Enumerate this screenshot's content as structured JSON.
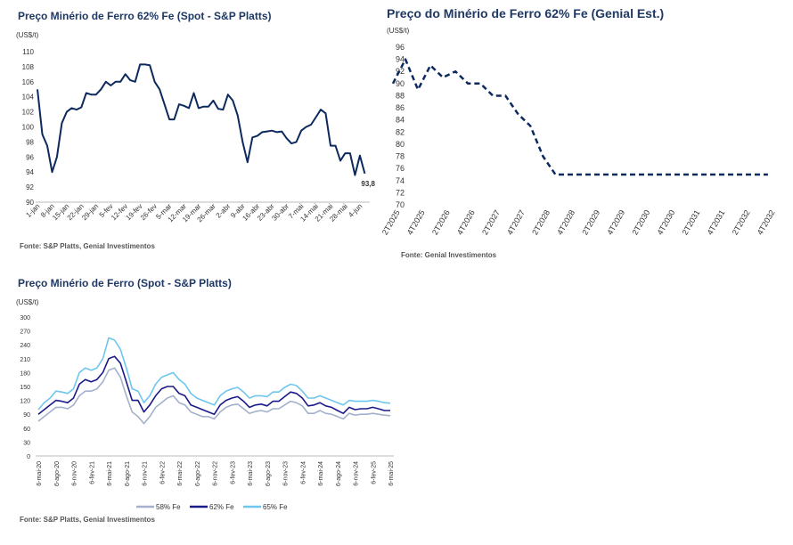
{
  "chart_data": [
    {
      "type": "line",
      "title": "Preço Minério de Ferro 62% Fe (Spot - S&P Platts)",
      "ylabel": "(US$/t)",
      "categories": [
        "1-jan",
        null,
        null,
        "8-jan",
        null,
        null,
        "15-jan",
        null,
        null,
        "22-jan",
        null,
        null,
        "29-jan",
        null,
        null,
        "5-fev",
        null,
        null,
        "12-fev",
        null,
        null,
        "19-fev",
        null,
        null,
        "26-fev",
        null,
        null,
        "5-mar",
        null,
        null,
        "12-mar",
        null,
        null,
        "19-mar",
        null,
        null,
        "26-mar",
        null,
        null,
        "2-abr",
        null,
        null,
        "9-abr",
        null,
        null,
        "16-abr",
        null,
        null,
        "23-abr",
        null,
        null,
        "30-abr",
        null,
        null,
        "7-mai",
        null,
        null,
        "14-mai",
        null,
        null,
        "21-mai",
        null,
        null,
        "28-mai",
        null,
        null,
        "4-jun",
        null
      ],
      "values": [
        105,
        99,
        97.5,
        94,
        96,
        100.5,
        102,
        102.5,
        102.3,
        102.6,
        104.5,
        104.3,
        104.3,
        105,
        106,
        105.5,
        106,
        106,
        107,
        106.2,
        106,
        108.3,
        108.3,
        108.2,
        106,
        105,
        103,
        101,
        101,
        103,
        102.8,
        102.5,
        104.5,
        102.5,
        102.7,
        102.7,
        103.5,
        102.4,
        102.3,
        104.3,
        103.5,
        101.5,
        98,
        95.3,
        98.6,
        98.8,
        99.3,
        99.4,
        99.5,
        99.3,
        99.4,
        98.5,
        97.8,
        98,
        99.5,
        100,
        100.3,
        101.3,
        102.3,
        101.8,
        97.5,
        97.5,
        95.5,
        96.5,
        96.5,
        93.6,
        96.2,
        93.8
      ],
      "value_labels": [
        null,
        null,
        null,
        null,
        null,
        null,
        null,
        null,
        null,
        null,
        null,
        null,
        null,
        null,
        null,
        null,
        null,
        null,
        null,
        null,
        null,
        null,
        null,
        null,
        null,
        null,
        null,
        null,
        null,
        null,
        null,
        null,
        null,
        null,
        null,
        null,
        null,
        null,
        null,
        null,
        null,
        null,
        null,
        null,
        null,
        null,
        null,
        null,
        null,
        null,
        null,
        null,
        null,
        null,
        null,
        null,
        null,
        null,
        null,
        null,
        null,
        null,
        null,
        null,
        null,
        null,
        null,
        "93,8"
      ],
      "color": "#0d2a5e",
      "ylim": [
        90,
        110
      ],
      "yticks": [
        90,
        92,
        94,
        96,
        98,
        100,
        102,
        104,
        106,
        108,
        110
      ],
      "source": "Fonte: S&P Platts, Genial Investimentos"
    },
    {
      "type": "line",
      "title": "Preço do Minério de Ferro 62% Fe (Genial Est.)",
      "ylabel": "(US$/t)",
      "categories": [
        "2T2025",
        null,
        "4T2025",
        null,
        "2T2026",
        null,
        "4T2026",
        null,
        "2T2027",
        null,
        "4T2027",
        null,
        "2T2028",
        null,
        "4T2028",
        null,
        "2T2029",
        null,
        "4T2029",
        null,
        "2T2030",
        null,
        "4T2030",
        null,
        "2T2031",
        null,
        "4T2031",
        null,
        "2T2032",
        null,
        "4T2032"
      ],
      "values": [
        90,
        94,
        89,
        93,
        91,
        92,
        90,
        90,
        88,
        88,
        85,
        83,
        78,
        75,
        75,
        75,
        75,
        75,
        75,
        75,
        75,
        75,
        75,
        75,
        75,
        75,
        75,
        75,
        75,
        75,
        75
      ],
      "color": "#0d2a5e",
      "line_style": "dashed",
      "ylim": [
        70,
        96
      ],
      "yticks": [
        70,
        72,
        74,
        76,
        78,
        80,
        82,
        84,
        86,
        88,
        90,
        92,
        94,
        96
      ],
      "source": "Fonte: Genial Investimentos"
    },
    {
      "type": "line",
      "title": "Preço Minério de Ferro (Spot - S&P Platts)",
      "ylabel": "(US$/t)",
      "categories": [
        "6-mai-20",
        null,
        null,
        "6-ago-20",
        null,
        null,
        "6-nov-20",
        null,
        null,
        "6-fev-21",
        null,
        null,
        "6-mai-21",
        null,
        null,
        "6-ago-21",
        null,
        null,
        "6-nov-21",
        null,
        null,
        "6-fev-22",
        null,
        null,
        "6-mai-22",
        null,
        null,
        "6-ago-22",
        null,
        null,
        "6-nov-22",
        null,
        null,
        "6-fev-23",
        null,
        null,
        "6-mai-23",
        null,
        null,
        "6-ago-23",
        null,
        null,
        "6-nov-23",
        null,
        null,
        "6-fev-24",
        null,
        null,
        "6-mai-24",
        null,
        null,
        "6-ago-24",
        null,
        null,
        "6-nov-24",
        null,
        null,
        "6-fev-25",
        null,
        null,
        "6-mai-25"
      ],
      "series": [
        {
          "name": "58% Fe",
          "color": "#a3b1cc",
          "values": [
            75,
            85,
            95,
            105,
            105,
            102,
            110,
            130,
            140,
            140,
            145,
            160,
            185,
            190,
            170,
            130,
            95,
            85,
            70,
            85,
            105,
            115,
            125,
            130,
            115,
            110,
            95,
            90,
            85,
            85,
            80,
            95,
            105,
            110,
            112,
            102,
            92,
            96,
            98,
            95,
            102,
            102,
            110,
            118,
            115,
            108,
            92,
            92,
            98,
            92,
            90,
            85,
            80,
            92,
            88,
            90,
            90,
            92,
            90,
            88,
            87
          ]
        },
        {
          "name": "62% Fe",
          "color": "#1a1a8a",
          "values": [
            90,
            100,
            110,
            120,
            118,
            115,
            125,
            155,
            165,
            160,
            165,
            180,
            210,
            215,
            200,
            160,
            120,
            120,
            95,
            110,
            130,
            145,
            150,
            150,
            135,
            130,
            110,
            105,
            100,
            95,
            90,
            110,
            120,
            125,
            128,
            118,
            105,
            110,
            112,
            108,
            118,
            118,
            128,
            138,
            135,
            125,
            108,
            110,
            115,
            108,
            105,
            98,
            92,
            105,
            100,
            102,
            102,
            105,
            102,
            98,
            98
          ]
        },
        {
          "name": "65% Fe",
          "color": "#6ec6ee",
          "values": [
            100,
            115,
            125,
            140,
            138,
            135,
            145,
            180,
            190,
            185,
            190,
            210,
            255,
            250,
            230,
            190,
            145,
            140,
            115,
            130,
            155,
            170,
            175,
            180,
            165,
            155,
            135,
            125,
            120,
            115,
            110,
            130,
            140,
            145,
            148,
            138,
            125,
            130,
            130,
            128,
            138,
            138,
            148,
            155,
            152,
            140,
            125,
            125,
            130,
            125,
            120,
            115,
            110,
            120,
            118,
            118,
            118,
            120,
            118,
            115,
            114
          ]
        }
      ],
      "ylim": [
        0,
        300
      ],
      "yticks": [
        0,
        30,
        60,
        90,
        120,
        150,
        180,
        210,
        240,
        270,
        300
      ],
      "legend": "bottom",
      "source": "Fonte: S&P Platts, Genial Investimentos"
    }
  ]
}
